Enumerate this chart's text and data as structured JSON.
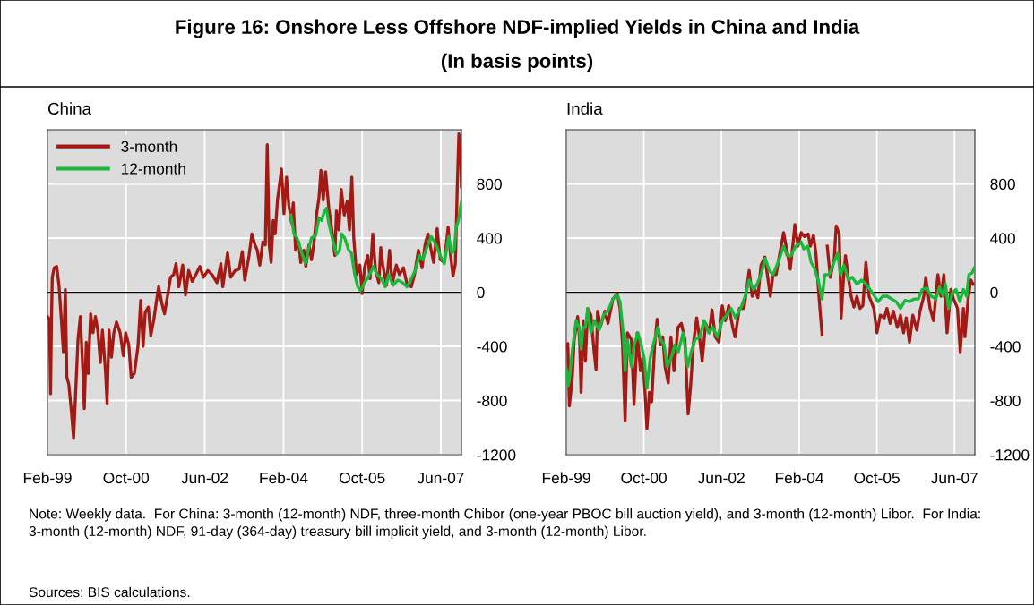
{
  "chart_data": [
    {
      "type": "line",
      "title": "China",
      "annotations": [
        "Figure 16: Onshore Less Offshore NDF-implied Yields in China and India",
        "(In basis points)",
        "Note: Weekly data.  For China: 3-month (12-month) NDF, three-month Chibor (one-year PBOC bill auction yield), and 3-month (12-month) Libor.  For India: 3-month (12-month) NDF, 91-day (364-day) treasury bill implicit yield, and 3-month (12-month) Libor.",
        "Sources: BIS calculations."
      ],
      "xlim": [
        "1999-02-01",
        "2007-11-08"
      ],
      "xticks": [
        {
          "value": "1999-02-01",
          "label": "Feb-99"
        },
        {
          "value": "2000-10-01",
          "label": "Oct-00"
        },
        {
          "value": "2002-06-01",
          "label": "Jun-02"
        },
        {
          "value": "2004-02-01",
          "label": "Feb-04"
        },
        {
          "value": "2005-10-01",
          "label": "Oct-05"
        },
        {
          "value": "2007-06-01",
          "label": "Jun-07"
        }
      ],
      "ylim": [
        -1200,
        1200
      ],
      "yticks": [
        -1200,
        -800,
        -400,
        0,
        400,
        800
      ],
      "grid": true,
      "legend": "top left",
      "ref_lines": [
        {
          "axis": "y",
          "value": 0,
          "color": "#000000"
        }
      ],
      "series": [
        {
          "name": "3-month",
          "color": "#a31a14",
          "x": [
            "1999-02-01",
            "1999-02-16",
            "1999-02-25",
            "1999-03-04",
            "1999-03-10",
            "1999-03-25",
            "1999-04-13",
            "1999-05-01",
            "1999-05-19",
            "1999-06-04",
            "1999-06-19",
            "1999-07-01",
            "1999-07-16",
            "1999-08-04",
            "1999-08-22",
            "1999-09-07",
            "1999-09-25",
            "1999-10-13",
            "1999-11-01",
            "1999-11-13",
            "1999-11-28",
            "1999-12-13",
            "2000-01-01",
            "2000-01-19",
            "2000-02-07",
            "2000-02-25",
            "2000-03-16",
            "2000-04-01",
            "2000-04-25",
            "2000-05-07",
            "2000-05-22",
            "2000-06-10",
            "2000-06-28",
            "2000-07-19",
            "2000-08-16",
            "2000-09-10",
            "2000-09-28",
            "2000-10-22",
            "2000-11-10",
            "2000-12-04",
            "2001-01-01",
            "2001-01-22",
            "2001-02-10",
            "2001-02-26",
            "2001-03-22",
            "2001-04-10",
            "2001-05-04",
            "2001-05-22",
            "2001-06-10",
            "2001-07-04",
            "2001-07-25",
            "2001-08-19",
            "2001-09-10",
            "2001-10-04",
            "2001-10-22",
            "2001-11-13",
            "2001-12-13",
            "2002-01-04",
            "2002-01-28",
            "2002-02-25",
            "2002-03-25",
            "2002-04-25",
            "2002-05-22",
            "2002-06-25",
            "2002-07-28",
            "2002-09-04",
            "2002-10-04",
            "2002-10-19",
            "2002-11-25",
            "2002-12-19",
            "2003-01-22",
            "2003-02-23",
            "2003-03-19",
            "2003-04-07",
            "2003-05-10",
            "2003-06-01",
            "2003-06-25",
            "2003-07-13",
            "2003-08-01",
            "2003-08-25",
            "2003-09-13",
            "2003-09-28",
            "2003-10-13",
            "2003-10-28",
            "2003-11-13",
            "2003-11-28",
            "2003-12-16",
            "2004-01-16",
            "2004-02-04",
            "2004-02-24",
            "2004-03-13",
            "2004-04-04",
            "2004-04-16",
            "2004-05-04",
            "2004-05-28",
            "2004-06-13",
            "2004-07-07",
            "2004-07-22",
            "2004-08-16",
            "2004-09-04",
            "2004-09-22",
            "2004-10-13",
            "2004-11-01",
            "2004-11-16",
            "2004-12-04",
            "2004-12-22",
            "2005-01-16",
            "2005-02-09",
            "2005-03-04",
            "2005-03-16",
            "2005-04-04",
            "2005-04-22",
            "2005-05-16",
            "2005-06-07",
            "2005-06-25",
            "2005-07-13",
            "2005-07-28",
            "2005-08-19",
            "2005-09-13",
            "2005-10-01",
            "2005-10-19",
            "2005-11-13",
            "2005-12-01",
            "2005-12-22",
            "2006-01-13",
            "2006-02-07",
            "2006-02-22",
            "2006-03-10",
            "2006-04-07",
            "2006-05-01",
            "2006-05-22",
            "2006-06-22",
            "2006-07-16",
            "2006-08-16",
            "2006-09-13",
            "2006-10-16",
            "2006-11-10",
            "2006-12-10",
            "2007-01-07",
            "2007-02-01",
            "2007-02-22",
            "2007-03-19",
            "2007-04-07",
            "2007-05-04",
            "2007-05-28",
            "2007-06-28",
            "2007-07-28",
            "2007-08-16",
            "2007-09-04",
            "2007-09-22",
            "2007-10-07",
            "2007-10-19",
            "2007-11-04",
            "2007-11-07"
          ],
          "values": [
            -180,
            -200,
            -750,
            -200,
            110,
            180,
            190,
            50,
            -200,
            -440,
            20,
            -630,
            -680,
            -870,
            -1080,
            -740,
            -350,
            -180,
            -570,
            -860,
            -370,
            -600,
            -160,
            -300,
            -180,
            -280,
            -520,
            -280,
            -590,
            -820,
            -280,
            -480,
            -300,
            -220,
            -300,
            -470,
            -300,
            -390,
            -630,
            -600,
            -400,
            -60,
            -400,
            -150,
            -110,
            -320,
            -200,
            -80,
            40,
            -80,
            -160,
            -20,
            110,
            130,
            210,
            40,
            200,
            -20,
            160,
            80,
            130,
            190,
            110,
            160,
            130,
            70,
            210,
            40,
            290,
            110,
            160,
            170,
            300,
            90,
            270,
            430,
            350,
            310,
            200,
            370,
            350,
            1090,
            350,
            220,
            530,
            430,
            680,
            910,
            580,
            850,
            640,
            510,
            660,
            310,
            370,
            220,
            310,
            190,
            350,
            240,
            350,
            570,
            700,
            900,
            680,
            890,
            620,
            460,
            270,
            600,
            460,
            760,
            570,
            670,
            460,
            850,
            400,
            130,
            200,
            -10,
            180,
            270,
            100,
            430,
            160,
            70,
            330,
            200,
            50,
            310,
            60,
            200,
            130,
            180,
            60,
            40,
            130,
            310,
            180,
            360,
            430,
            310,
            220,
            470,
            240,
            220,
            480,
            270,
            120,
            210,
            790,
            1170,
            970,
            780
          ]
        },
        {
          "name": "12-month",
          "color": "#19b83a",
          "x": [
            "2004-03-28",
            "2004-04-22",
            "2004-05-16",
            "2004-06-01",
            "2004-06-28",
            "2004-07-19",
            "2004-08-10",
            "2004-09-04",
            "2004-10-07",
            "2004-11-01",
            "2004-11-22",
            "2004-12-10",
            "2004-12-28",
            "2005-01-16",
            "2005-02-12",
            "2005-03-16",
            "2005-04-10",
            "2005-04-25",
            "2005-05-19",
            "2005-06-19",
            "2005-07-10",
            "2005-08-04",
            "2005-08-28",
            "2005-09-19",
            "2005-10-19",
            "2005-11-16",
            "2005-12-28",
            "2006-01-25",
            "2006-02-26",
            "2006-03-28",
            "2006-04-25",
            "2006-05-28",
            "2006-07-04",
            "2006-08-10",
            "2006-09-13",
            "2006-10-16",
            "2006-11-16",
            "2006-12-16",
            "2007-01-13",
            "2007-02-13",
            "2007-03-19",
            "2007-04-22",
            "2007-05-28",
            "2007-06-28",
            "2007-08-01",
            "2007-08-25",
            "2007-09-13",
            "2007-09-28",
            "2007-10-16",
            "2007-11-07"
          ],
          "values": [
            570,
            430,
            400,
            350,
            270,
            210,
            310,
            400,
            420,
            550,
            530,
            590,
            620,
            510,
            400,
            280,
            310,
            430,
            400,
            310,
            290,
            130,
            40,
            10,
            70,
            110,
            190,
            130,
            100,
            40,
            130,
            50,
            90,
            70,
            40,
            100,
            160,
            270,
            240,
            330,
            410,
            360,
            270,
            210,
            410,
            290,
            310,
            480,
            530,
            660
          ]
        }
      ]
    },
    {
      "type": "line",
      "title": "India",
      "xlim": [
        "1999-02-01",
        "2007-11-08"
      ],
      "xticks": [
        {
          "value": "1999-02-01",
          "label": "Feb-99"
        },
        {
          "value": "2000-10-01",
          "label": "Oct-00"
        },
        {
          "value": "2002-06-01",
          "label": "Jun-02"
        },
        {
          "value": "2004-02-01",
          "label": "Feb-04"
        },
        {
          "value": "2005-10-01",
          "label": "Oct-05"
        },
        {
          "value": "2007-06-01",
          "label": "Jun-07"
        }
      ],
      "ylim": [
        -1200,
        1200
      ],
      "yticks": [
        -1200,
        -800,
        -400,
        0,
        400,
        800
      ],
      "grid": true,
      "ref_lines": [
        {
          "axis": "y",
          "value": 0,
          "color": "#000000"
        }
      ],
      "series": [
        {
          "color": "#a31a14",
          "x": [
            "1999-02-01",
            "1999-02-13",
            "1999-02-25",
            "1999-03-19",
            "1999-04-04",
            "1999-05-01",
            "1999-05-16",
            "1999-05-28",
            "1999-06-13",
            "1999-07-01",
            "1999-07-19",
            "1999-08-13",
            "1999-09-07",
            "1999-09-22",
            "1999-10-04",
            "1999-10-28",
            "1999-12-01",
            "1999-12-25",
            "2000-02-01",
            "2000-03-07",
            "2000-03-28",
            "2000-04-16",
            "2000-05-07",
            "2000-05-25",
            "2000-06-25",
            "2000-07-16",
            "2000-08-10",
            "2000-09-04",
            "2000-09-22",
            "2000-10-10",
            "2000-10-25",
            "2000-11-13",
            "2000-12-01",
            "2000-12-25",
            "2001-01-13",
            "2001-02-07",
            "2001-02-26",
            "2001-03-16",
            "2001-04-10",
            "2001-05-01",
            "2001-05-25",
            "2001-06-25",
            "2001-07-22",
            "2001-08-19",
            "2001-09-13",
            "2001-10-01",
            "2001-10-25",
            "2001-11-19",
            "2001-12-13",
            "2002-01-01",
            "2002-01-28",
            "2002-02-25",
            "2002-03-19",
            "2002-04-13",
            "2002-05-13",
            "2002-06-07",
            "2002-07-01",
            "2002-07-28",
            "2002-08-28",
            "2002-09-16",
            "2002-10-19",
            "2002-11-25",
            "2003-01-04",
            "2003-01-28",
            "2003-02-19",
            "2003-03-13",
            "2003-04-07",
            "2003-05-07",
            "2003-05-22",
            "2003-06-19",
            "2003-07-10",
            "2003-08-04",
            "2003-08-25",
            "2003-10-01",
            "2003-10-25",
            "2003-11-22",
            "2003-12-16",
            "2003-12-28",
            "2004-01-22",
            "2004-02-16",
            "2004-03-13",
            "2004-04-10",
            "2004-04-28",
            "2004-05-22",
            "2004-06-10",
            "2004-07-04",
            "2004-07-28",
            "2004-08-13",
            "2004-09-07",
            "2004-10-01",
            "2004-11-01",
            "2004-11-16",
            "2004-12-10",
            "2004-12-25",
            "2005-01-13",
            "2005-01-28",
            "2005-02-19",
            "2005-03-13",
            "2005-04-04",
            "2005-04-28",
            "2005-05-22",
            "2005-06-13",
            "2005-07-07",
            "2005-08-01",
            "2005-09-07",
            "2005-10-01",
            "2005-10-28",
            "2005-11-28",
            "2005-12-19",
            "2006-01-13",
            "2006-02-07",
            "2006-03-10",
            "2006-04-04",
            "2006-04-28",
            "2006-05-19",
            "2006-06-13",
            "2006-07-10",
            "2006-08-10",
            "2006-09-04",
            "2006-10-04",
            "2006-10-19",
            "2006-11-22",
            "2006-12-19",
            "2007-01-22",
            "2007-02-15",
            "2007-03-10",
            "2007-04-04",
            "2007-05-04",
            "2007-05-25",
            "2007-06-25",
            "2007-07-16",
            "2007-08-10",
            "2007-08-22",
            "2007-09-16",
            "2007-10-07",
            "2007-10-25"
          ],
          "values": [
            -420,
            -380,
            -840,
            -650,
            -350,
            -180,
            -350,
            -740,
            -210,
            -510,
            -120,
            -170,
            -440,
            -570,
            -140,
            -250,
            -140,
            -230,
            -50,
            -10,
            -120,
            -370,
            -950,
            -300,
            -350,
            -830,
            -300,
            -580,
            -490,
            -740,
            -1010,
            -740,
            -810,
            -390,
            -200,
            -390,
            -330,
            -550,
            -670,
            -330,
            -580,
            -260,
            -230,
            -350,
            -900,
            -710,
            -370,
            -190,
            -350,
            -510,
            -230,
            -300,
            -130,
            -330,
            -370,
            -100,
            -210,
            -100,
            -260,
            -330,
            -120,
            -120,
            160,
            -30,
            20,
            -40,
            200,
            260,
            160,
            -30,
            130,
            130,
            250,
            440,
            320,
            170,
            380,
            500,
            340,
            440,
            410,
            430,
            340,
            420,
            290,
            -30,
            -310,
            null,
            340,
            110,
            250,
            490,
            430,
            -190,
            110,
            270,
            110,
            -30,
            -110,
            -30,
            -120,
            -100,
            220,
            -30,
            -120,
            -300,
            -170,
            -190,
            -120,
            -230,
            -140,
            -260,
            -170,
            -300,
            -190,
            -370,
            -170,
            -280,
            -140,
            -30,
            110,
            -120,
            -210,
            130,
            -30,
            130,
            -300,
            20,
            -50,
            -120,
            -440,
            -120,
            -330,
            -50,
            90,
            60
          ]
        },
        {
          "color": "#19b83a",
          "x": [
            "1999-02-01",
            "1999-02-16",
            "1999-03-07",
            "1999-03-25",
            "1999-04-19",
            "1999-05-13",
            "1999-05-28",
            "1999-06-13",
            "1999-07-01",
            "1999-07-19",
            "1999-08-13",
            "1999-09-10",
            "1999-10-16",
            "1999-11-19",
            "1999-12-25",
            "2000-02-01",
            "2000-03-07",
            "2000-03-28",
            "2000-04-22",
            "2000-05-07",
            "2000-05-25",
            "2000-06-25",
            "2000-07-16",
            "2000-08-16",
            "2000-09-10",
            "2000-10-04",
            "2000-10-25",
            "2000-11-19",
            "2000-12-13",
            "2001-01-19",
            "2001-02-10",
            "2001-03-10",
            "2001-04-01",
            "2001-05-01",
            "2001-06-01",
            "2001-06-28",
            "2001-08-04",
            "2001-09-10",
            "2001-10-07",
            "2001-11-07",
            "2001-12-13",
            "2002-01-16",
            "2002-02-22",
            "2002-03-25",
            "2002-05-01",
            "2002-06-07",
            "2002-07-10",
            "2002-08-16",
            "2002-09-19",
            "2002-11-07",
            "2002-12-04",
            "2003-01-04",
            "2003-02-07",
            "2003-03-07",
            "2003-04-07",
            "2003-05-10",
            "2003-06-10",
            "2003-07-10",
            "2003-08-19",
            "2003-10-01",
            "2003-10-28",
            "2003-11-28",
            "2004-01-04",
            "2004-02-16",
            "2004-03-07",
            "2004-04-07",
            "2004-05-04",
            "2004-05-28",
            "2004-06-28",
            "2004-07-28",
            "2004-08-19",
            "2004-09-22",
            "2004-10-22",
            "2004-11-28",
            "2004-12-19",
            "2005-01-16",
            "2005-02-19",
            "2005-03-22",
            "2005-04-28",
            "2005-06-04",
            "2005-07-07",
            "2005-08-07",
            "2005-09-07",
            "2005-10-10",
            "2005-11-16",
            "2005-12-19",
            "2006-01-25",
            "2006-03-01",
            "2006-04-04",
            "2006-05-10",
            "2006-06-13",
            "2006-07-19",
            "2006-08-22",
            "2006-09-22",
            "2006-10-28",
            "2006-12-01",
            "2007-01-07",
            "2007-02-04",
            "2007-03-04",
            "2007-03-22",
            "2007-04-16",
            "2007-05-13",
            "2007-06-13",
            "2007-07-13",
            "2007-08-10",
            "2007-09-04",
            "2007-09-22",
            "2007-10-16",
            "2007-11-04"
          ],
          "values": [
            -570,
            -690,
            -550,
            -390,
            -210,
            -260,
            -420,
            -260,
            -260,
            -120,
            -300,
            -210,
            -280,
            -170,
            -140,
            -50,
            -20,
            -70,
            -300,
            -580,
            -350,
            -550,
            -390,
            -300,
            -390,
            -490,
            -710,
            -490,
            -390,
            -260,
            -350,
            -390,
            -550,
            -490,
            -390,
            -440,
            -300,
            -550,
            -440,
            -350,
            -330,
            -210,
            -300,
            -260,
            -330,
            -210,
            -170,
            -120,
            -190,
            -100,
            -30,
            90,
            20,
            60,
            130,
            250,
            160,
            130,
            220,
            340,
            270,
            270,
            340,
            370,
            320,
            340,
            220,
            180,
            90,
            -50,
            130,
            130,
            200,
            290,
            130,
            200,
            90,
            110,
            60,
            90,
            60,
            20,
            -20,
            -70,
            -30,
            -30,
            -50,
            -70,
            -120,
            -60,
            -70,
            -50,
            -50,
            20,
            30,
            -30,
            -50,
            40,
            -30,
            60,
            -120,
            -10,
            20,
            -70,
            20,
            -30,
            130,
            140,
            180
          ]
        }
      ]
    }
  ]
}
